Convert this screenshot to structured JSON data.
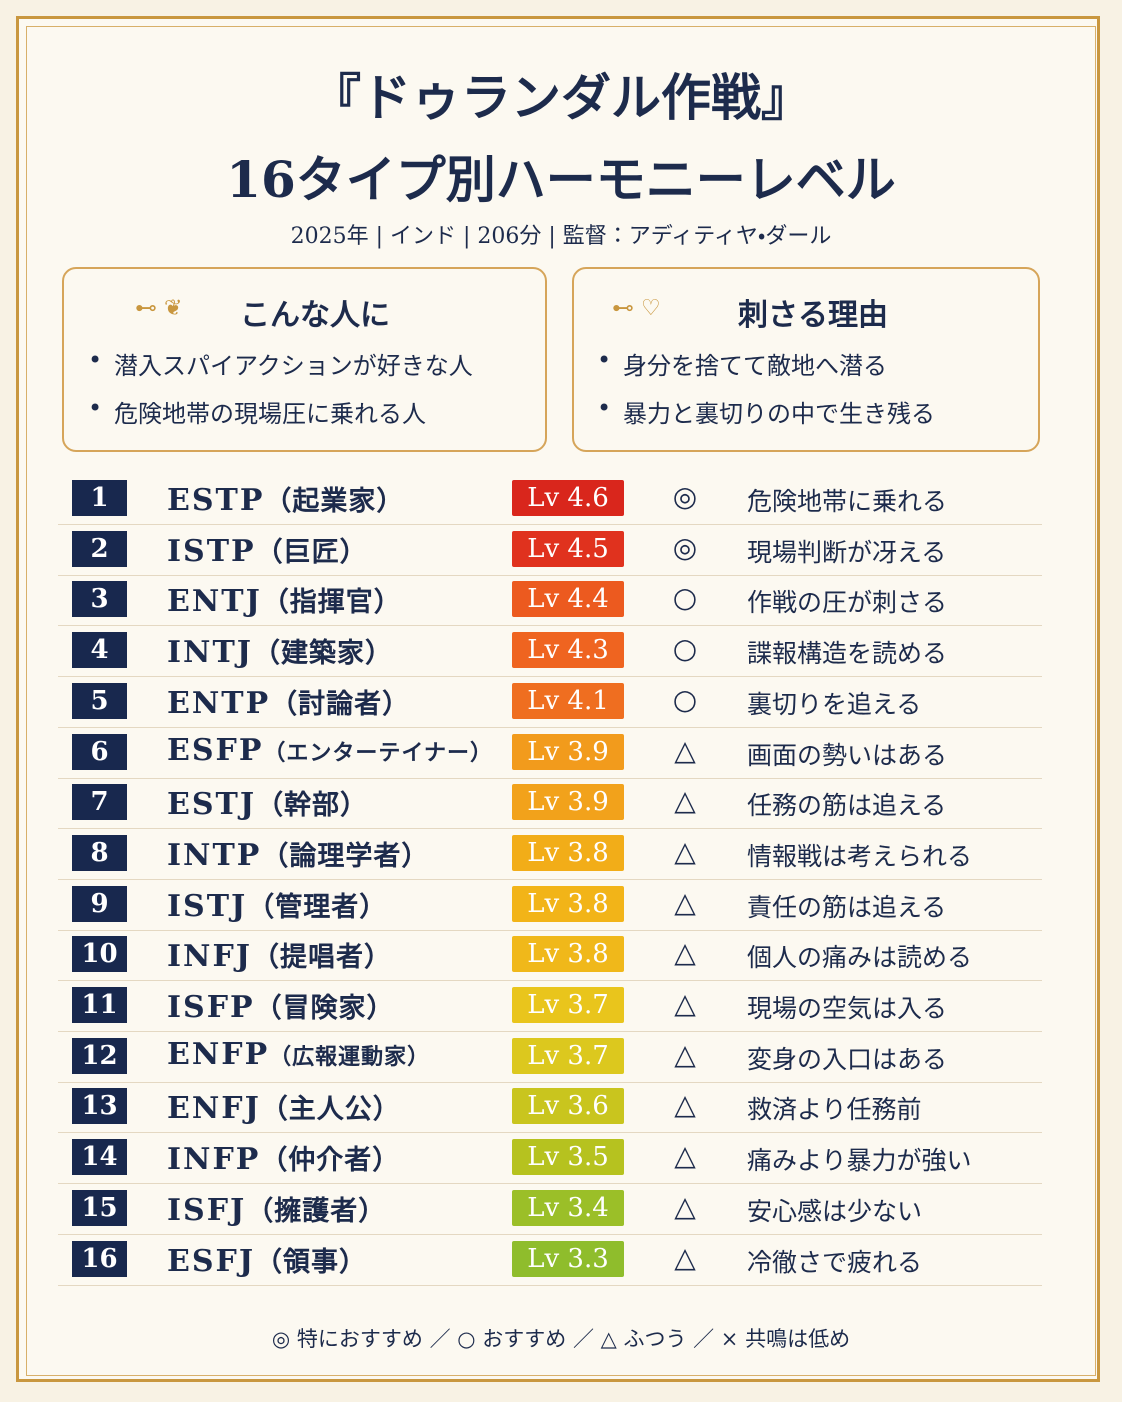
{
  "header": {
    "title_line1": "『ドゥランダル作戦』",
    "title_line2": "16タイプ別ハーモニーレベル",
    "meta": "2025年 | インド | 206分 | 監督：アディティヤ・ダール"
  },
  "panels": [
    {
      "title": "こんな人に",
      "items": [
        "潜入スパイアクションが好きな人",
        "危険地帯の現場圧に乗れる人"
      ]
    },
    {
      "title": "刺さる理由",
      "items": [
        "身分を捨てて敵地へ潜る",
        "暴力と裏切りの中で生き残る"
      ]
    }
  ],
  "rows": [
    {
      "rank": 1,
      "type": "ESTP",
      "role": "（起業家）",
      "level": "Lv 4.6",
      "mark": "◎",
      "comment": "危険地帯に乗れる",
      "color": "#d9261c"
    },
    {
      "rank": 2,
      "type": "ISTP",
      "role": "（巨匠）",
      "level": "Lv 4.5",
      "mark": "◎",
      "comment": "現場判断が冴える",
      "color": "#e0321e"
    },
    {
      "rank": 3,
      "type": "ENTJ",
      "role": "（指揮官）",
      "level": "Lv 4.4",
      "mark": "○",
      "comment": "作戦の圧が刺さる",
      "color": "#ec5a1f"
    },
    {
      "rank": 4,
      "type": "INTJ",
      "role": "（建築家）",
      "level": "Lv 4.3",
      "mark": "○",
      "comment": "諜報構造を読める",
      "color": "#ef6420"
    },
    {
      "rank": 5,
      "type": "ENTP",
      "role": "（討論者）",
      "level": "Lv 4.1",
      "mark": "○",
      "comment": "裏切りを追える",
      "color": "#ef6e20"
    },
    {
      "rank": 6,
      "type": "ESFP",
      "role": "（エンターテイナー）",
      "level": "Lv 3.9",
      "mark": "△",
      "comment": "画面の勢いはある",
      "color": "#f29b1c"
    },
    {
      "rank": 7,
      "type": "ESTJ",
      "role": "（幹部）",
      "level": "Lv 3.9",
      "mark": "△",
      "comment": "任務の筋は追える",
      "color": "#f2a21b"
    },
    {
      "rank": 8,
      "type": "INTP",
      "role": "（論理学者）",
      "level": "Lv 3.8",
      "mark": "△",
      "comment": "情報戦は考えられる",
      "color": "#f2ad18"
    },
    {
      "rank": 9,
      "type": "ISTJ",
      "role": "（管理者）",
      "level": "Lv 3.8",
      "mark": "△",
      "comment": "責任の筋は追える",
      "color": "#f2b418"
    },
    {
      "rank": 10,
      "type": "INFJ",
      "role": "（提唱者）",
      "level": "Lv 3.8",
      "mark": "△",
      "comment": "個人の痛みは読める",
      "color": "#f0b81a"
    },
    {
      "rank": 11,
      "type": "ISFP",
      "role": "（冒険家）",
      "level": "Lv 3.7",
      "mark": "△",
      "comment": "現場の空気は入る",
      "color": "#e9c51c"
    },
    {
      "rank": 12,
      "type": "ENFP",
      "role": "（広報運動家）",
      "level": "Lv 3.7",
      "mark": "△",
      "comment": "変身の入口はある",
      "color": "#dcc81e"
    },
    {
      "rank": 13,
      "type": "ENFJ",
      "role": "（主人公）",
      "level": "Lv 3.6",
      "mark": "△",
      "comment": "救済より任務前",
      "color": "#c9c51e"
    },
    {
      "rank": 14,
      "type": "INFP",
      "role": "（仲介者）",
      "level": "Lv 3.5",
      "mark": "△",
      "comment": "痛みより暴力が強い",
      "color": "#b6c21f"
    },
    {
      "rank": 15,
      "type": "ISFJ",
      "role": "（擁護者）",
      "level": "Lv 3.4",
      "mark": "△",
      "comment": "安心感は少ない",
      "color": "#9bbf28"
    },
    {
      "rank": 16,
      "type": "ESFJ",
      "role": "（領事）",
      "level": "Lv 3.3",
      "mark": "△",
      "comment": "冷徹さで疲れる",
      "color": "#8fbd2c"
    }
  ],
  "legend": "◎ 特におすすめ ／ ○ おすすめ ／ △ ふつう ／ × 共鳴は低め"
}
